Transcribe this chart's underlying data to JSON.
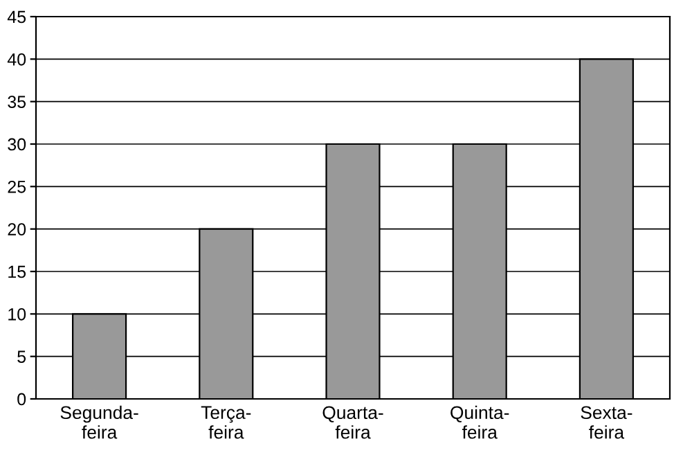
{
  "chart_data": {
    "type": "bar",
    "categories": [
      "Segunda-\nfeira",
      "Terça-\nfeira",
      "Quarta-\nfeira",
      "Quinta-\nfeira",
      "Sexta-\nfeira"
    ],
    "values": [
      10,
      20,
      30,
      30,
      40
    ],
    "color": "#999999",
    "ylim": [
      0,
      45
    ],
    "yticks": [
      0,
      5,
      10,
      15,
      20,
      25,
      30,
      35,
      40,
      45
    ],
    "grid": "y"
  }
}
